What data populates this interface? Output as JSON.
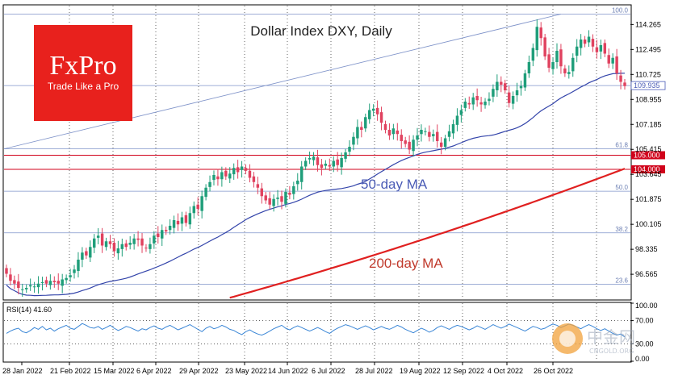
{
  "chart_data": {
    "type": "candlestick",
    "title": "Dollar Index DXY, Daily",
    "price_axis": {
      "ylim": [
        94.8,
        115.6
      ],
      "ticks": [
        "114.265",
        "112.495",
        "110.725",
        "108.955",
        "107.185",
        "105.415",
        "103.645",
        "101.875",
        "100.105",
        "98.335",
        "96.565"
      ],
      "tick_values": [
        114.265,
        112.495,
        110.725,
        108.955,
        107.185,
        105.415,
        103.645,
        101.875,
        100.105,
        98.335,
        96.565
      ]
    },
    "date_labels": [
      "28 Jan 2022",
      "21 Feb 2022",
      "15 Mar 2022",
      "6 Apr 2022",
      "29 Apr 2022",
      "23 May 2022",
      "14 Jun 2022",
      "6 Jul 2022",
      "28 Jul 2022",
      "19 Aug 2022",
      "12 Sep 2022",
      "4 Oct 2022",
      "26 Oct 2022"
    ],
    "current_price": {
      "label": "109.935",
      "value": 109.935,
      "color": "#4a5bb5"
    },
    "horizontal_levels": [
      {
        "label": "105.000",
        "value": 105.0,
        "color": "#d0021b"
      },
      {
        "label": "104.000",
        "value": 104.0,
        "color": "#d0021b"
      }
    ],
    "fibonacci_levels": [
      {
        "label": "100.0",
        "value": 115.0
      },
      {
        "label": "61.8",
        "value": 105.45
      },
      {
        "label": "50.0",
        "value": 102.45
      },
      {
        "label": "38.2",
        "value": 99.5
      },
      {
        "label": "23.6",
        "value": 95.85
      }
    ],
    "annotations": {
      "ma50": "50-day MA",
      "ma200": "200-day MA"
    },
    "series": [
      {
        "name": "50-day MA",
        "color": "#3344aa"
      },
      {
        "name": "200-day MA",
        "color": "#e02020"
      }
    ],
    "candles_close": [
      96.6,
      96.1,
      95.9,
      95.6,
      95.5,
      95.6,
      95.8,
      95.7,
      95.9,
      96.0,
      95.9,
      96.1,
      96.0,
      95.9,
      96.2,
      96.3,
      96.5,
      96.9,
      97.6,
      98.1,
      97.9,
      98.5,
      99.1,
      99.3,
      98.6,
      98.9,
      98.7,
      98.2,
      98.4,
      98.7,
      98.5,
      98.8,
      99.1,
      99.0,
      98.6,
      98.4,
      98.7,
      99.3,
      99.2,
      99.7,
      99.6,
      100.0,
      100.4,
      100.1,
      100.6,
      100.2,
      100.9,
      101.4,
      101.2,
      102.1,
      102.7,
      103.1,
      103.6,
      103.3,
      103.8,
      103.5,
      103.7,
      104.1,
      103.8,
      104.2,
      103.9,
      103.4,
      103.1,
      102.7,
      102.1,
      101.8,
      101.5,
      101.9,
      102.0,
      101.7,
      102.4,
      102.2,
      102.8,
      103.2,
      104.2,
      104.6,
      104.8,
      104.9,
      104.3,
      104.1,
      104.4,
      104.2,
      104.6,
      104.3,
      104.8,
      105.2,
      105.6,
      106.3,
      107.0,
      106.8,
      107.7,
      108.2,
      108.3,
      107.9,
      107.3,
      106.8,
      106.4,
      106.9,
      106.5,
      106.0,
      105.8,
      105.4,
      106.1,
      106.4,
      106.8,
      106.7,
      106.3,
      106.5,
      106.0,
      105.6,
      106.2,
      106.7,
      107.2,
      107.8,
      108.2,
      108.8,
      108.6,
      109.1,
      108.9,
      108.6,
      108.8,
      109.0,
      109.7,
      110.2,
      110.0,
      109.6,
      108.7,
      109.2,
      109.6,
      109.9,
      110.8,
      111.6,
      112.6,
      114.1,
      113.3,
      112.0,
      111.2,
      111.6,
      112.4,
      111.3,
      110.8,
      110.9,
      111.9,
      112.7,
      113.2,
      112.9,
      113.4,
      112.7,
      112.3,
      112.8,
      112.2,
      111.5,
      111.9,
      110.8,
      110.2,
      109.9
    ],
    "rsi": {
      "label": "RSI(14) 41.60",
      "value": 41.6,
      "ticks": [
        "100.00",
        "70.00",
        "30.00",
        "0.00"
      ],
      "tick_values": [
        100,
        70,
        30,
        0
      ],
      "values": [
        48,
        52,
        55,
        57,
        51,
        49,
        53,
        58,
        55,
        60,
        54,
        57,
        52,
        56,
        59,
        62,
        57,
        55,
        60,
        65,
        62,
        58,
        57,
        60,
        55,
        58,
        62,
        57,
        53,
        56,
        60,
        58,
        55,
        52,
        56,
        54,
        58,
        61,
        57,
        55,
        59,
        62,
        58,
        54,
        57,
        60,
        63,
        59,
        55,
        51,
        57,
        60,
        56,
        58,
        62,
        59,
        55,
        53,
        49,
        46,
        51,
        54,
        50,
        47,
        45,
        48,
        52,
        56,
        59,
        62,
        57,
        54,
        58,
        61,
        58,
        55,
        52,
        55,
        58,
        55,
        51,
        48,
        53,
        57,
        60,
        63,
        61,
        58,
        55,
        58,
        61,
        58,
        54,
        57,
        60,
        57,
        55,
        58,
        62,
        59,
        55,
        52,
        49,
        53,
        57,
        54,
        50,
        53,
        58,
        61,
        58,
        55,
        59,
        62,
        60,
        57,
        54,
        57,
        61,
        58,
        55,
        59,
        63,
        60,
        57,
        60,
        64,
        61,
        58,
        55,
        52,
        56,
        60,
        58,
        55,
        57,
        61,
        64,
        62,
        58,
        61,
        64,
        62,
        59,
        56,
        60,
        63,
        60,
        56,
        53,
        56,
        52,
        48,
        45,
        47,
        41.6
      ]
    },
    "grid": "dotted",
    "legend": "none"
  },
  "branding": {
    "logo_text": "FxPro",
    "logo_tagline": "Trade Like a Pro",
    "logo_color": "#e8211d",
    "watermark_cn": "中金网",
    "watermark_url": "CNGOLD.ORG"
  }
}
